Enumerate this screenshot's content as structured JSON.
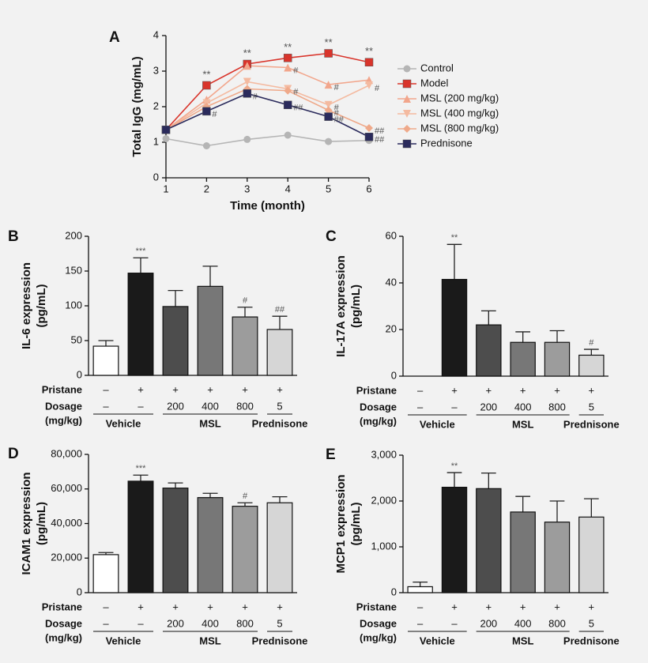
{
  "chart_data": [
    {
      "type": "line",
      "label": "A",
      "xlabel": "Time (month)",
      "ylabel": "Total IgG (mg/mL)",
      "x": [
        1,
        2,
        3,
        4,
        5,
        6
      ],
      "xlim": [
        1,
        6
      ],
      "xticks": [
        1,
        2,
        3,
        4,
        5,
        6
      ],
      "ylim": [
        0,
        4
      ],
      "yticks": [
        0,
        1,
        2,
        3,
        4
      ],
      "series": [
        {
          "name": "Control",
          "color": "#b5b5b5",
          "marker": "circle",
          "values": [
            1.1,
            0.9,
            1.08,
            1.2,
            1.02,
            1.05
          ],
          "annotations": [
            null,
            null,
            null,
            null,
            null,
            null
          ]
        },
        {
          "name": "Model",
          "color": "#d9342b",
          "marker": "square",
          "values": [
            1.35,
            2.6,
            3.2,
            3.37,
            3.5,
            3.25
          ],
          "annotations": [
            null,
            "**",
            "**",
            "**",
            "**",
            "**"
          ]
        },
        {
          "name": "MSL (200 mg/kg)",
          "color": "#f2a68c",
          "marker": "triangle-up",
          "values": [
            1.35,
            2.2,
            3.15,
            3.1,
            2.62,
            2.75
          ],
          "annotations": [
            null,
            null,
            null,
            "#",
            "#",
            null
          ]
        },
        {
          "name": "MSL (400 mg/kg)",
          "color": "#f4baa0",
          "marker": "triangle-down",
          "values": [
            1.35,
            2.1,
            2.7,
            2.5,
            2.05,
            2.6
          ],
          "annotations": [
            null,
            null,
            null,
            "#",
            "#",
            "#"
          ]
        },
        {
          "name": "MSL (800 mg/kg)",
          "color": "#efa98a",
          "marker": "diamond",
          "values": [
            1.35,
            2.0,
            2.5,
            2.45,
            1.9,
            1.4
          ],
          "annotations": [
            null,
            null,
            null,
            null,
            "#",
            "##"
          ]
        },
        {
          "name": "Prednisone",
          "color": "#2b2b5c",
          "marker": "square",
          "values": [
            1.35,
            1.87,
            2.37,
            2.05,
            1.72,
            1.15
          ],
          "annotations": [
            null,
            "#",
            "#",
            "##",
            "##",
            "##"
          ]
        }
      ]
    },
    {
      "type": "bar",
      "label": "B",
      "ylabel": [
        "IL-6 expression",
        "(pg/mL)"
      ],
      "values": [
        42,
        147,
        99,
        128,
        84,
        66
      ],
      "errors": [
        8,
        22,
        23,
        29,
        14,
        19
      ],
      "annotations": [
        null,
        "***",
        null,
        null,
        "#",
        "##"
      ],
      "colors": [
        "#ffffff",
        "#1a1a1a",
        "#4d4d4d",
        "#777777",
        "#9c9c9c",
        "#d6d6d6"
      ],
      "ylim": [
        0,
        200
      ],
      "yticks": [
        0,
        50,
        100,
        150,
        200
      ],
      "rows": [
        {
          "label": "Pristane",
          "values": [
            "–",
            "+",
            "+",
            "+",
            "+",
            "+"
          ]
        },
        {
          "label": "Dosage",
          "sublabel": "(mg/kg)",
          "values": [
            "–",
            "–",
            "200",
            "400",
            "800",
            "5"
          ]
        }
      ],
      "groups": [
        {
          "label": "Vehicle",
          "span": 2
        },
        {
          "label": "MSL",
          "span": 3
        },
        {
          "label": "Prednisone",
          "span": 1
        }
      ]
    },
    {
      "type": "bar",
      "label": "C",
      "ylabel": [
        "IL-17A expression",
        "(pg/mL)"
      ],
      "values": [
        0,
        41.5,
        22,
        14.5,
        14.5,
        9
      ],
      "errors": [
        0,
        15,
        6,
        4.5,
        5,
        2.5
      ],
      "annotations": [
        null,
        "**",
        null,
        null,
        null,
        "#"
      ],
      "colors": [
        "#ffffff",
        "#1a1a1a",
        "#4d4d4d",
        "#777777",
        "#9c9c9c",
        "#d6d6d6"
      ],
      "ylim": [
        0,
        60
      ],
      "yticks": [
        0,
        20,
        40,
        60
      ],
      "rows": [
        {
          "label": "Pristane",
          "values": [
            "–",
            "+",
            "+",
            "+",
            "+",
            "+"
          ]
        },
        {
          "label": "Dosage",
          "sublabel": "(mg/kg)",
          "values": [
            "–",
            "–",
            "200",
            "400",
            "800",
            "5"
          ]
        }
      ],
      "groups": [
        {
          "label": "Vehicle",
          "span": 2
        },
        {
          "label": "MSL",
          "span": 3
        },
        {
          "label": "Prednisone",
          "span": 1
        }
      ]
    },
    {
      "type": "bar",
      "label": "D",
      "ylabel": [
        "ICAM1 expression",
        "(pg/mL)"
      ],
      "values": [
        22000,
        64500,
        60500,
        55000,
        50000,
        52000
      ],
      "errors": [
        1200,
        3500,
        3000,
        2500,
        2000,
        3500
      ],
      "annotations": [
        null,
        "***",
        null,
        null,
        "#",
        null
      ],
      "colors": [
        "#ffffff",
        "#1a1a1a",
        "#4d4d4d",
        "#777777",
        "#9c9c9c",
        "#d6d6d6"
      ],
      "ylim": [
        0,
        80000
      ],
      "yticks": [
        0,
        {
          "value": 20000,
          "label": "20,000"
        },
        {
          "value": 40000,
          "label": "40,000"
        },
        {
          "value": 60000,
          "label": "60,000"
        },
        {
          "value": 80000,
          "label": "80,000"
        }
      ],
      "rows": [
        {
          "label": "Pristane",
          "values": [
            "–",
            "+",
            "+",
            "+",
            "+",
            "+"
          ]
        },
        {
          "label": "Dosage",
          "sublabel": "(mg/kg)",
          "values": [
            "–",
            "–",
            "200",
            "400",
            "800",
            "5"
          ]
        }
      ],
      "groups": [
        {
          "label": "Vehicle",
          "span": 2
        },
        {
          "label": "MSL",
          "span": 3
        },
        {
          "label": "Prednisone",
          "span": 1
        }
      ]
    },
    {
      "type": "bar",
      "label": "E",
      "ylabel": [
        "MCP1 expression",
        "(pg/mL)"
      ],
      "values": [
        130,
        2300,
        2270,
        1760,
        1540,
        1650
      ],
      "errors": [
        100,
        320,
        340,
        340,
        460,
        400
      ],
      "annotations": [
        null,
        "**",
        null,
        null,
        null,
        null
      ],
      "colors": [
        "#ffffff",
        "#1a1a1a",
        "#4d4d4d",
        "#777777",
        "#9c9c9c",
        "#d6d6d6"
      ],
      "ylim": [
        0,
        3000
      ],
      "yticks": [
        0,
        {
          "value": 1000,
          "label": "1,000"
        },
        {
          "value": 2000,
          "label": "2,000"
        },
        {
          "value": 3000,
          "label": "3,000"
        }
      ],
      "rows": [
        {
          "label": "Pristane",
          "values": [
            "–",
            "+",
            "+",
            "+",
            "+",
            "+"
          ]
        },
        {
          "label": "Dosage",
          "sublabel": "(mg/kg)",
          "values": [
            "–",
            "–",
            "200",
            "400",
            "800",
            "5"
          ]
        }
      ],
      "groups": [
        {
          "label": "Vehicle",
          "span": 2
        },
        {
          "label": "MSL",
          "span": 3
        },
        {
          "label": "Prednisone",
          "span": 1
        }
      ]
    }
  ]
}
